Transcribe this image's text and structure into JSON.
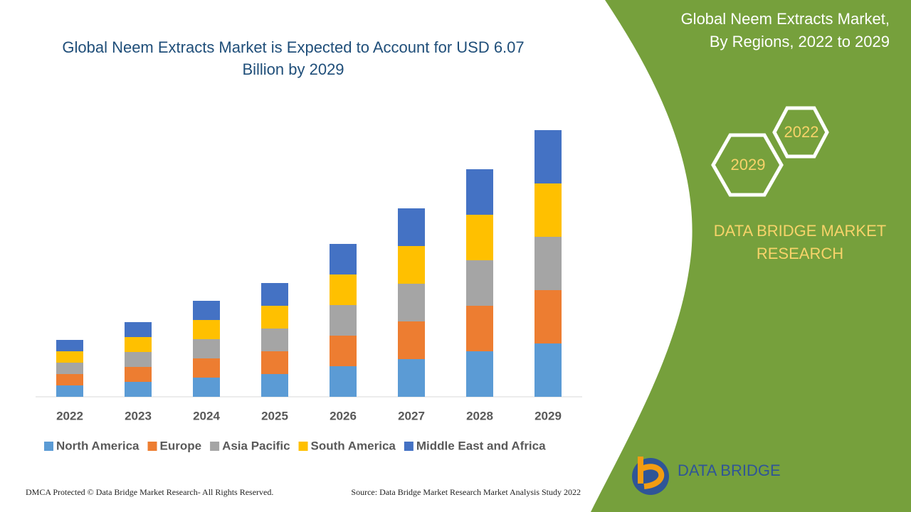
{
  "chart_data": {
    "type": "stacked-bar",
    "title": "Global Neem Extracts Market is Expected to Account for USD 6.07 Billion by 2029",
    "categories": [
      "2022",
      "2023",
      "2024",
      "2025",
      "2026",
      "2027",
      "2028",
      "2029"
    ],
    "series": [
      {
        "name": "North America",
        "color": "#5b9bd5",
        "values": [
          16,
          21,
          27,
          32,
          43,
          53,
          64,
          75
        ]
      },
      {
        "name": "Europe",
        "color": "#ed7d31",
        "values": [
          16,
          21,
          27,
          32,
          43,
          53,
          64,
          75
        ]
      },
      {
        "name": "Asia Pacific",
        "color": "#a5a5a5",
        "values": [
          16,
          21,
          27,
          32,
          43,
          53,
          64,
          75
        ]
      },
      {
        "name": "South America",
        "color": "#ffc000",
        "values": [
          16,
          21,
          27,
          32,
          43,
          53,
          64,
          75
        ]
      },
      {
        "name": "Middle East and Africa",
        "color": "#4472c4",
        "values": [
          16,
          21,
          27,
          32,
          43,
          53,
          64,
          75
        ]
      }
    ],
    "ylim": [
      0,
      400
    ],
    "legend": "bottom"
  },
  "panel": {
    "title_line1": "Global Neem Extracts Market,",
    "title_line2": "By Regions, 2022 to 2029",
    "hex_back": "2022",
    "hex_front": "2029",
    "brand_line1": "DATA BRIDGE MARKET",
    "brand_line2": "RESEARCH",
    "logo": "DATA BRIDGE"
  },
  "footer": {
    "copyright": "DMCA Protected © Data Bridge Market Research- All Rights Reserved.",
    "source": "Source: Data Bridge Market Research Market Analysis Study 2022"
  }
}
